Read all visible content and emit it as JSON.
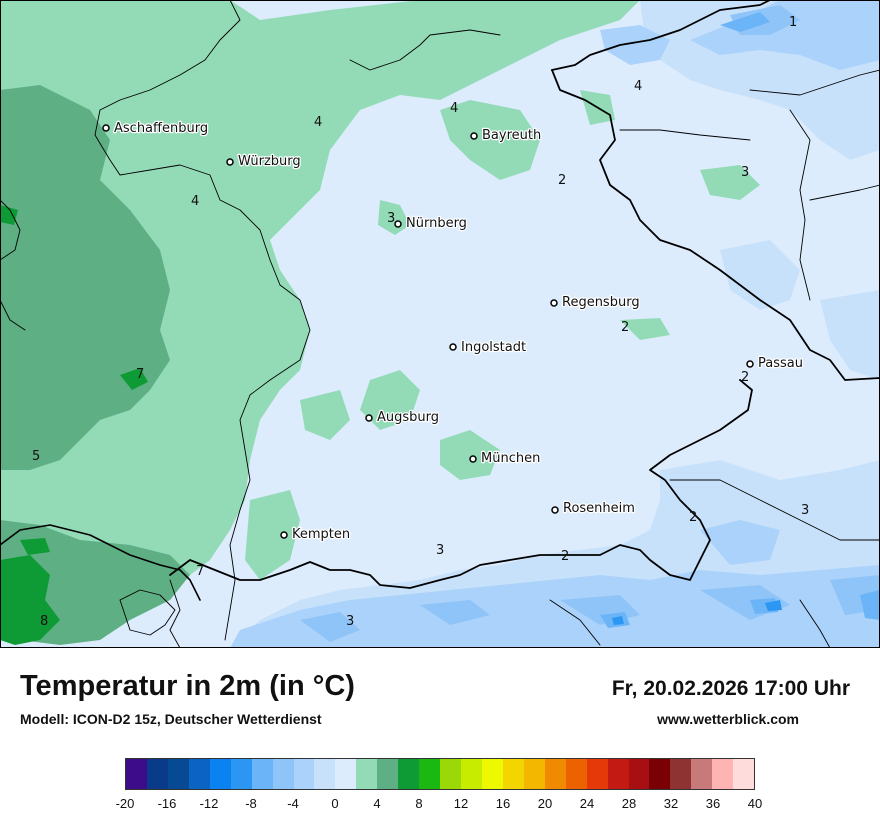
{
  "map": {
    "title": "Temperatur in 2m (in °C)",
    "model": "Modell: ICON-D2 15z, Deutscher Wetterdienst",
    "datetime": "Fr, 20.02.2026 17:00 Uhr",
    "website": "www.wetterblick.com",
    "cities": [
      {
        "name": "Aschaffenburg"
      },
      {
        "name": "Würzburg"
      },
      {
        "name": "Bayreuth"
      },
      {
        "name": "Nürnberg"
      },
      {
        "name": "Regensburg"
      },
      {
        "name": "Ingolstadt"
      },
      {
        "name": "Passau"
      },
      {
        "name": "Augsburg"
      },
      {
        "name": "München"
      },
      {
        "name": "Rosenheim"
      },
      {
        "name": "Kempten"
      }
    ],
    "temperature_labels": [
      "1",
      "4",
      "4",
      "4",
      "4",
      "3",
      "2",
      "3",
      "2",
      "7",
      "2",
      "5",
      "2",
      "3",
      "2",
      "3",
      "7",
      "8",
      "3"
    ]
  },
  "legend": {
    "unit": "°C",
    "colors": [
      "#3c0c8a",
      "#0a3b8a",
      "#054a93",
      "#0b63c4",
      "#0a83f0",
      "#2b97f3",
      "#6ab4f7",
      "#8fc4f8",
      "#aad2fa",
      "#c8e1fb",
      "#dcecfd",
      "#93dbb7",
      "#5faf84",
      "#0e9a35",
      "#1bb812",
      "#9ad808",
      "#c8ec00",
      "#eef800",
      "#f3d502",
      "#f3b700",
      "#f08a00",
      "#ec6100",
      "#e53909",
      "#c41a14",
      "#a80f12",
      "#7a0005",
      "#8e3232",
      "#c87a7a",
      "#ffb4b4",
      "#ffdcdc"
    ],
    "ticks": [
      "-20",
      "-16",
      "-12",
      "-8",
      "-4",
      "0",
      "4",
      "8",
      "12",
      "16",
      "20",
      "24",
      "28",
      "32",
      "36",
      "40"
    ]
  }
}
